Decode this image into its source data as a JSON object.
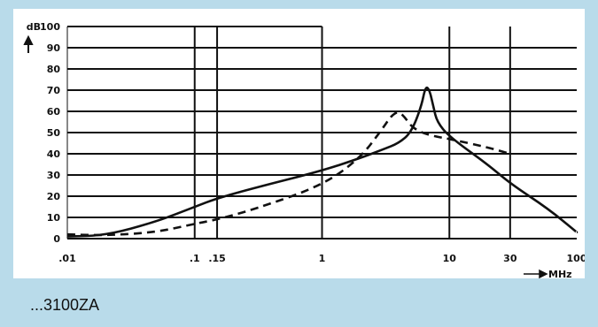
{
  "caption": "...3100ZA",
  "chart_data": {
    "type": "line",
    "title": "",
    "xlabel": "MHz",
    "ylabel": "dB",
    "xscale": "log",
    "xlim": [
      0.01,
      100
    ],
    "ylim": [
      0,
      100
    ],
    "x_ticks": [
      {
        "value": 0.01,
        "label": ".01"
      },
      {
        "value": 0.1,
        "label": ".1"
      },
      {
        "value": 0.15,
        "label": ".15"
      },
      {
        "value": 1,
        "label": "1"
      },
      {
        "value": 10,
        "label": "10"
      },
      {
        "value": 30,
        "label": "30"
      },
      {
        "value": 100,
        "label": "100"
      }
    ],
    "y_ticks": [
      {
        "value": 0,
        "label": "0"
      },
      {
        "value": 10,
        "label": "10"
      },
      {
        "value": 20,
        "label": "20"
      },
      {
        "value": 30,
        "label": "30"
      },
      {
        "value": 40,
        "label": "40"
      },
      {
        "value": 50,
        "label": "50"
      },
      {
        "value": 60,
        "label": "60"
      },
      {
        "value": 70,
        "label": "70"
      },
      {
        "value": 80,
        "label": "80"
      },
      {
        "value": 90,
        "label": "90"
      },
      {
        "value": 100,
        "label": "100"
      }
    ],
    "grid": true,
    "series": [
      {
        "style": "solid",
        "x": [
          0.01,
          0.02,
          0.05,
          0.1,
          0.15,
          0.3,
          1,
          2,
          3,
          4,
          5,
          6,
          6.5,
          7,
          7.5,
          8,
          10,
          20,
          30,
          60,
          100
        ],
        "y": [
          1,
          1.5,
          8,
          15,
          19,
          24,
          32,
          38,
          42,
          45,
          50,
          62,
          72,
          70,
          62,
          55,
          48,
          35,
          26,
          14,
          3
        ]
      },
      {
        "style": "dashed",
        "x": [
          0.01,
          0.02,
          0.05,
          0.1,
          0.15,
          0.3,
          1,
          2,
          3,
          3.5,
          4,
          4.5,
          5,
          6,
          8,
          10,
          20,
          30
        ],
        "y": [
          2,
          1.5,
          3,
          7,
          9,
          14,
          25,
          38,
          52,
          58,
          60,
          57,
          53,
          50,
          48,
          47,
          43,
          40
        ]
      }
    ]
  }
}
